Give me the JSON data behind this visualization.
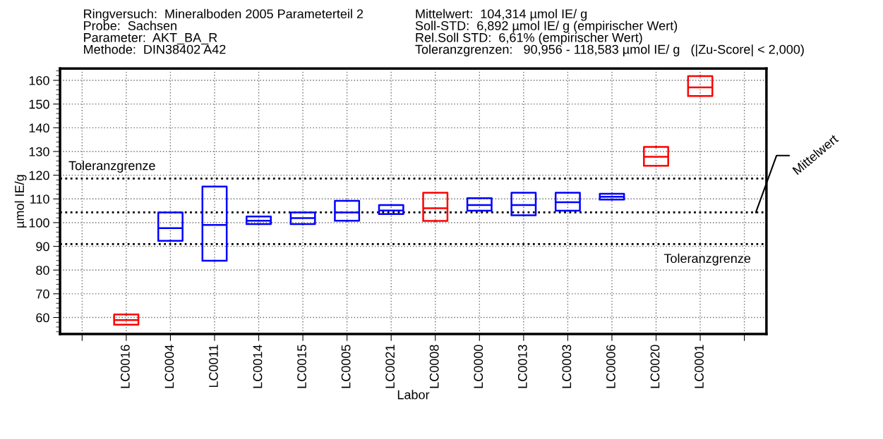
{
  "chart_data": {
    "type": "box",
    "title": "Ringversuch:  Mineralboden 2005 Parameterteil 2",
    "annotations": [
      "Probe:  Sachsen",
      "Parameter:  AKT_BA_R",
      "Methode:  DIN38402 A42",
      "Mittelwert:  104,314 µmol IE/ g",
      "Soll-STD:  6,892 µmol IE/ g (empirischer Wert)",
      "Rel.Soll STD:  6,61% (empirischer Wert)",
      "Toleranzgrenzen:   90,956 - 118,583 µmol IE/ g   (|Zu-Score| < 2,000)"
    ],
    "xlabel": "Labor",
    "ylabel": "µmol IE/g",
    "categories": [
      null,
      "LC0016",
      "LC0004",
      "LC0011",
      "LC0014",
      "LC0015",
      "LC0005",
      "LC0021",
      "LC0008",
      "LC0000",
      "LC0013",
      "LC0003",
      "LC0006",
      "LC0020",
      "LC0001",
      null
    ],
    "boxes": [
      null,
      {
        "low": 57.0,
        "q1": 57.0,
        "median": 58.9,
        "q3": 61.3,
        "high": 61.3
      },
      {
        "low": 92.3,
        "q1": 92.3,
        "median": 97.7,
        "q3": 104.3,
        "high": 104.3
      },
      {
        "low": 83.9,
        "q1": 83.9,
        "median": 99.0,
        "q3": 115.2,
        "high": 115.2
      },
      {
        "low": 99.4,
        "q1": 99.4,
        "median": 100.8,
        "q3": 102.6,
        "high": 102.6
      },
      {
        "low": 99.4,
        "q1": 99.4,
        "median": 101.9,
        "q3": 104.3,
        "high": 104.3
      },
      {
        "low": 100.8,
        "q1": 100.8,
        "median": 104.3,
        "q3": 109.2,
        "high": 109.2
      },
      {
        "low": 103.6,
        "q1": 103.6,
        "median": 105.1,
        "q3": 107.4,
        "high": 107.4
      },
      {
        "low": 100.7,
        "q1": 100.7,
        "median": 106.1,
        "q3": 112.6,
        "high": 112.6
      },
      {
        "low": 105.0,
        "q1": 105.0,
        "median": 107.4,
        "q3": 110.3,
        "high": 110.3
      },
      {
        "low": 103.1,
        "q1": 103.1,
        "median": 107.4,
        "q3": 112.6,
        "high": 112.6
      },
      {
        "low": 105.0,
        "q1": 105.0,
        "median": 108.6,
        "q3": 112.6,
        "high": 112.6
      },
      {
        "low": 109.7,
        "q1": 109.7,
        "median": 110.9,
        "q3": 112.2,
        "high": 112.2
      },
      {
        "low": 124.0,
        "q1": 124.0,
        "median": 127.8,
        "q3": 131.9,
        "high": 131.9
      },
      {
        "low": 153.4,
        "q1": 153.4,
        "median": 157.0,
        "q3": 161.8,
        "high": 161.8
      },
      null
    ],
    "colors": [
      null,
      "#ff0000",
      "#0000ff",
      "#0000ff",
      "#0000ff",
      "#0000ff",
      "#0000ff",
      "#0000ff",
      "#ff0000",
      "#0000ff",
      "#0000ff",
      "#0000ff",
      "#0000ff",
      "#ff0000",
      "#ff0000",
      null
    ],
    "ylim": [
      53,
      165
    ],
    "yticks": [
      60,
      70,
      80,
      90,
      100,
      110,
      120,
      130,
      140,
      150,
      160
    ],
    "ref_lines": [
      {
        "axis": "y",
        "value": 104.314,
        "label": "Mittelwert",
        "color": "#000000",
        "line_style": "dotted"
      },
      {
        "axis": "y",
        "value": 118.583,
        "label": "Toleranzgrenze",
        "color": "#000000",
        "line_style": "dotted"
      },
      {
        "axis": "y",
        "value": 90.956,
        "label": "Toleranzgrenze",
        "color": "#000000",
        "line_style": "dotted"
      }
    ],
    "grid": true
  }
}
